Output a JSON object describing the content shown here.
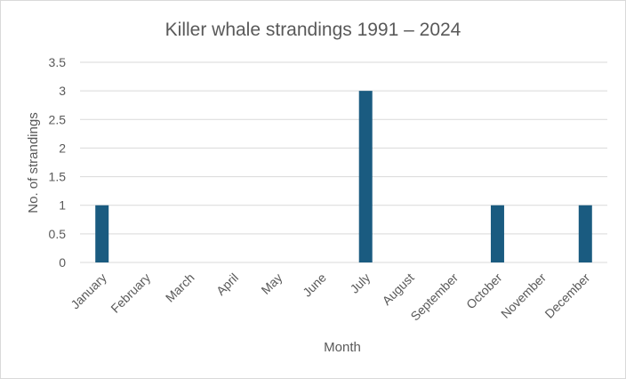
{
  "chart_data": {
    "type": "bar",
    "title": "Killer whale strandings 1991 – 2024",
    "xlabel": "Month",
    "ylabel": "No. of strandings",
    "categories": [
      "January",
      "February",
      "March",
      "April",
      "May",
      "June",
      "July",
      "August",
      "September",
      "October",
      "November",
      "December"
    ],
    "values": [
      1,
      0,
      0,
      0,
      0,
      0,
      3,
      0,
      0,
      1,
      0,
      1
    ],
    "ylim": [
      0,
      3.5
    ],
    "yticks": [
      "0",
      "0.5",
      "1",
      "1.5",
      "2",
      "2.5",
      "3",
      "3.5"
    ],
    "grid": true,
    "legend": "none",
    "bar_color": "#1a5b80",
    "grid_color": "#d9d9d9"
  }
}
